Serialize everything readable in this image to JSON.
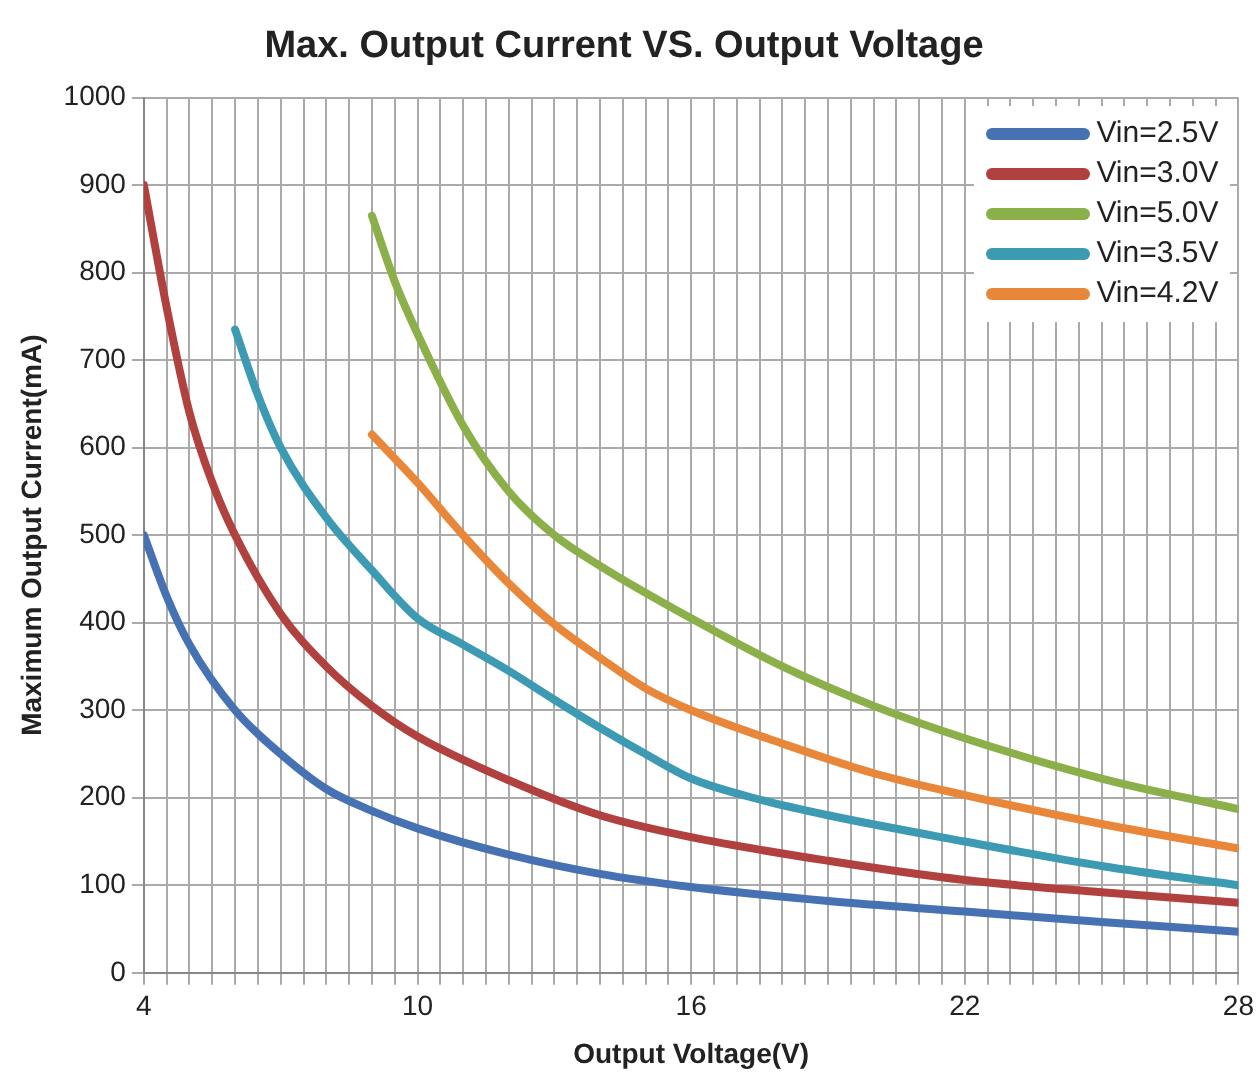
{
  "chart_data": {
    "type": "line",
    "title": "Max. Output Current VS. Output Voltage",
    "xlabel": "Output Voltage(V)",
    "ylabel": "Maximum Output Current(mA)",
    "xlim": [
      4,
      28
    ],
    "xticks": [
      4,
      {
        "value": 4.5,
        "label": null
      },
      {
        "value": 5,
        "label": null
      },
      {
        "value": 5.5,
        "label": null
      },
      {
        "value": 6,
        "label": null
      },
      {
        "value": 6.5,
        "label": null
      },
      {
        "value": 7,
        "label": null
      },
      {
        "value": 7.5,
        "label": null
      },
      {
        "value": 8,
        "label": null
      },
      {
        "value": 8.5,
        "label": null
      },
      {
        "value": 9,
        "label": null
      },
      {
        "value": 9.5,
        "label": null
      },
      10,
      {
        "value": 10.5,
        "label": null
      },
      {
        "value": 11,
        "label": null
      },
      {
        "value": 11.5,
        "label": null
      },
      {
        "value": 12,
        "label": null
      },
      {
        "value": 12.5,
        "label": null
      },
      {
        "value": 13,
        "label": null
      },
      {
        "value": 13.5,
        "label": null
      },
      {
        "value": 14,
        "label": null
      },
      {
        "value": 14.5,
        "label": null
      },
      {
        "value": 15,
        "label": null
      },
      {
        "value": 15.5,
        "label": null
      },
      16,
      {
        "value": 16.5,
        "label": null
      },
      {
        "value": 17,
        "label": null
      },
      {
        "value": 17.5,
        "label": null
      },
      {
        "value": 18,
        "label": null
      },
      {
        "value": 18.5,
        "label": null
      },
      {
        "value": 19,
        "label": null
      },
      {
        "value": 19.5,
        "label": null
      },
      {
        "value": 20,
        "label": null
      },
      {
        "value": 20.5,
        "label": null
      },
      {
        "value": 21,
        "label": null
      },
      {
        "value": 21.5,
        "label": null
      },
      22,
      {
        "value": 22.5,
        "label": null
      },
      {
        "value": 23,
        "label": null
      },
      {
        "value": 23.5,
        "label": null
      },
      {
        "value": 24,
        "label": null
      },
      {
        "value": 24.5,
        "label": null
      },
      {
        "value": 25,
        "label": null
      },
      {
        "value": 25.5,
        "label": null
      },
      {
        "value": 26,
        "label": null
      },
      {
        "value": 26.5,
        "label": null
      },
      {
        "value": 27,
        "label": null
      },
      {
        "value": 27.5,
        "label": null
      },
      28
    ],
    "ylim": [
      0,
      1000
    ],
    "yticks": [
      0,
      100,
      200,
      300,
      400,
      500,
      600,
      700,
      800,
      900,
      1000
    ],
    "grid": true,
    "legend": "top right",
    "marker": "none",
    "line_style": "solid",
    "series": [
      {
        "name": "Vin=2.5V",
        "color": "#4672b4",
        "x": [
          4,
          4.5,
          5,
          6,
          7,
          8,
          9,
          10,
          12,
          14,
          16,
          19,
          22,
          25,
          28
        ],
        "values": [
          500,
          430,
          375,
          300,
          250,
          210,
          185,
          165,
          135,
          113,
          98,
          82,
          70,
          58,
          47
        ]
      },
      {
        "name": "Vin=3.0V",
        "color": "#b0413e",
        "x": [
          4,
          4.5,
          5,
          5.5,
          6,
          7,
          8,
          9,
          10,
          12,
          14,
          16,
          19,
          22,
          25,
          28
        ],
        "values": [
          900,
          760,
          640,
          560,
          500,
          410,
          350,
          305,
          270,
          220,
          180,
          155,
          128,
          106,
          92,
          80
        ]
      },
      {
        "name": "Vin=5.0V",
        "color": "#8bb04a",
        "x": [
          9,
          9.5,
          10,
          11,
          12,
          13,
          14,
          16,
          18,
          20,
          22,
          25,
          28
        ],
        "values": [
          865,
          790,
          730,
          625,
          550,
          500,
          465,
          405,
          350,
          305,
          268,
          222,
          187
        ]
      },
      {
        "name": "Vin=3.5V",
        "color": "#3d9ab3",
        "x": [
          6,
          6.5,
          7,
          8,
          9,
          10,
          11,
          12,
          13,
          14,
          15,
          16,
          17.5,
          19,
          22,
          25,
          28
        ],
        "values": [
          735,
          660,
          600,
          520,
          460,
          405,
          375,
          345,
          312,
          280,
          250,
          222,
          198,
          180,
          150,
          122,
          100
        ]
      },
      {
        "name": "Vin=4.2V",
        "color": "#e8873a",
        "x": [
          9,
          10,
          11,
          12,
          13,
          14,
          15,
          16,
          18,
          20,
          22,
          25,
          28
        ],
        "values": [
          615,
          560,
          500,
          445,
          398,
          360,
          325,
          300,
          262,
          228,
          203,
          170,
          142
        ]
      }
    ]
  }
}
